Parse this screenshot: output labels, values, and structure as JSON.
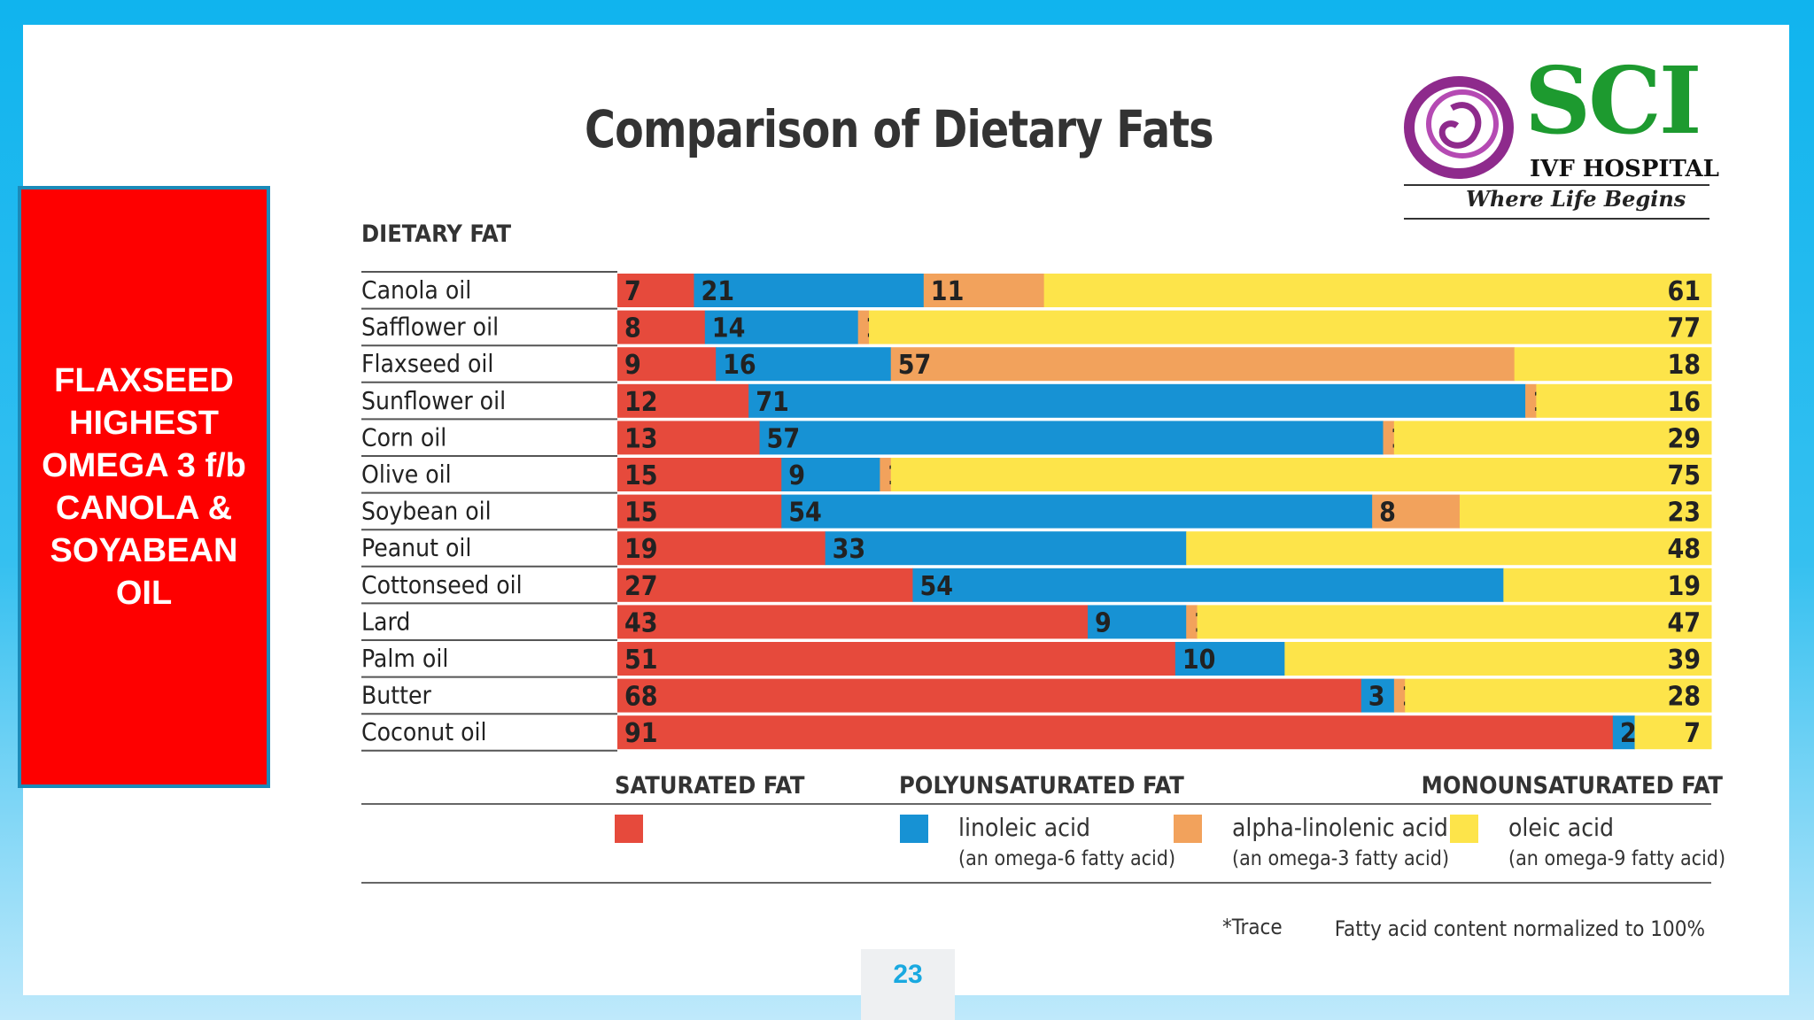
{
  "callout": {
    "text": "FLAXSEED\nHIGHEST\nOMEGA 3 f/b\nCANOLA &\nSOYABEAN\nOIL"
  },
  "logo": {
    "name": "SCI",
    "subtitle": "IVF HOSPITAL",
    "tagline": "Where Life Begins",
    "icon": "swirl-mother-child-logo-icon"
  },
  "page_number": "23",
  "colors": {
    "saturated": "#e64a3c",
    "linoleic": "#1792d4",
    "alpha_linolenic": "#f2a25c",
    "oleic": "#fde44a",
    "border": "#1b8ab8"
  },
  "chart_data": {
    "type": "bar",
    "orientation": "horizontal",
    "stacked": true,
    "normalized_to": 100,
    "title": "Comparison of Dietary Fats",
    "row_header": "DIETARY FAT",
    "categories": [
      "Canola oil",
      "Safflower oil",
      "Flaxseed oil",
      "Sunflower oil",
      "Corn oil",
      "Olive oil",
      "Soybean oil",
      "Peanut oil",
      "Cottonseed oil",
      "Lard",
      "Palm oil",
      "Butter",
      "Coconut oil"
    ],
    "series": [
      {
        "key": "saturated",
        "values": [
          7,
          8,
          9,
          12,
          13,
          15,
          15,
          19,
          27,
          43,
          51,
          68,
          91
        ]
      },
      {
        "key": "linoleic",
        "values": [
          21,
          14,
          16,
          71,
          57,
          9,
          54,
          33,
          54,
          9,
          10,
          3,
          2
        ]
      },
      {
        "key": "alpha_linolenic",
        "values": [
          11,
          1,
          57,
          1,
          1,
          1,
          8,
          "*",
          "*",
          1,
          "*",
          1,
          ""
        ]
      },
      {
        "key": "oleic",
        "values": [
          61,
          77,
          18,
          16,
          29,
          75,
          23,
          48,
          19,
          47,
          39,
          28,
          7
        ]
      }
    ],
    "group_labels": {
      "saturated": "SATURATED FAT",
      "polyunsaturated": "POLYUNSATURATED FAT",
      "monounsaturated": "MONOUNSATURATED FAT"
    },
    "legend": [
      {
        "key": "saturated",
        "label": "",
        "sublabel": ""
      },
      {
        "key": "linoleic",
        "label": "linoleic acid",
        "sublabel": "(an omega-6 fatty acid)"
      },
      {
        "key": "alpha_linolenic",
        "label": "alpha-linolenic acid",
        "sublabel": "(an omega-3 fatty acid)"
      },
      {
        "key": "oleic",
        "label": "oleic acid",
        "sublabel": "(an omega-9 fatty acid)"
      }
    ],
    "footnote": "*Trace",
    "note": "Fatty acid content normalized to 100%"
  }
}
